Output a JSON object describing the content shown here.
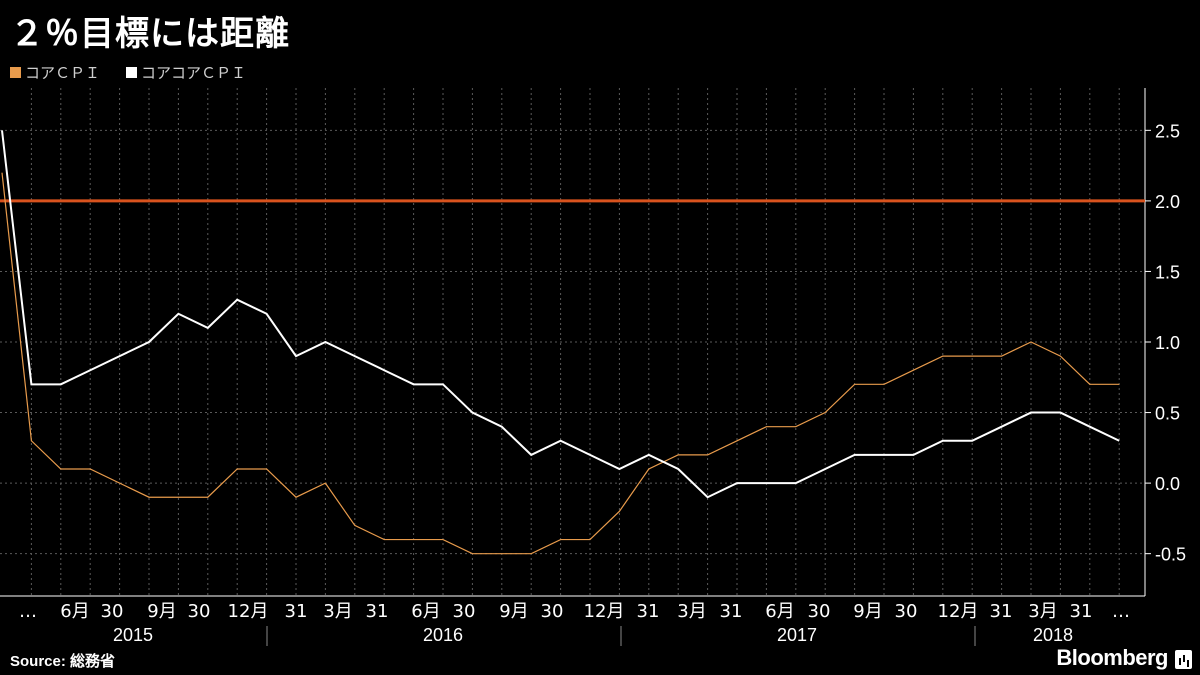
{
  "title": "２％目標には距離",
  "source": "Source: 総務省",
  "brand": "Bloomberg",
  "colors": {
    "background": "#000000",
    "core_cpi": "#e89b4c",
    "core_core_cpi": "#ffffff",
    "target_line": "#d9531e",
    "grid": "#5a5a5a",
    "axis_text": "#ffffff"
  },
  "chart_data": {
    "type": "line",
    "title": "２％目標には距離",
    "ylim": [
      -0.8,
      2.8
    ],
    "yticks": [
      -0.5,
      0.0,
      0.5,
      1.0,
      1.5,
      2.0,
      2.5
    ],
    "ytick_labels": [
      "-0.5",
      "0.0",
      "0.5",
      "1.0",
      "1.5",
      "2.0",
      "2.5"
    ],
    "y_axis_side": "right",
    "grid": true,
    "legend_position": "top-left",
    "x": [
      "2015-03",
      "2015-04",
      "2015-05",
      "2015-06",
      "2015-07",
      "2015-08",
      "2015-09",
      "2015-10",
      "2015-11",
      "2015-12",
      "2016-01",
      "2016-02",
      "2016-03",
      "2016-04",
      "2016-05",
      "2016-06",
      "2016-07",
      "2016-08",
      "2016-09",
      "2016-10",
      "2016-11",
      "2016-12",
      "2017-01",
      "2017-02",
      "2017-03",
      "2017-04",
      "2017-05",
      "2017-06",
      "2017-07",
      "2017-08",
      "2017-09",
      "2017-10",
      "2017-11",
      "2017-12",
      "2018-01",
      "2018-02",
      "2018-03",
      "2018-04",
      "2018-05"
    ],
    "xtick_labels": [
      "…",
      "6月",
      "30",
      "9月",
      "30",
      "12月",
      "31",
      "3月",
      "31",
      "6月",
      "30",
      "9月",
      "30",
      "12月",
      "31",
      "3月",
      "31",
      "6月",
      "30",
      "9月",
      "30",
      "12月",
      "31",
      "3月",
      "31",
      "…"
    ],
    "year_labels": [
      "2015",
      "2016",
      "2017",
      "2018"
    ],
    "reference_line": {
      "y": 2.0,
      "label": ""
    },
    "series": [
      {
        "name": "コアＣＰＩ",
        "values": [
          2.2,
          0.3,
          0.1,
          0.1,
          0.0,
          -0.1,
          -0.1,
          -0.1,
          0.1,
          0.1,
          -0.1,
          0.0,
          -0.3,
          -0.4,
          -0.4,
          -0.4,
          -0.5,
          -0.5,
          -0.5,
          -0.4,
          -0.4,
          -0.2,
          0.1,
          0.2,
          0.2,
          0.3,
          0.4,
          0.4,
          0.5,
          0.7,
          0.7,
          0.8,
          0.9,
          0.9,
          0.9,
          1.0,
          0.9,
          0.7,
          0.7
        ]
      },
      {
        "name": "コアコアＣＰＩ",
        "values": [
          2.5,
          0.7,
          0.7,
          0.8,
          0.9,
          1.0,
          1.2,
          1.1,
          1.3,
          1.2,
          0.9,
          1.0,
          0.9,
          0.8,
          0.7,
          0.7,
          0.5,
          0.4,
          0.2,
          0.3,
          0.2,
          0.1,
          0.2,
          0.1,
          -0.1,
          0.0,
          0.0,
          0.0,
          0.1,
          0.2,
          0.2,
          0.2,
          0.3,
          0.3,
          0.4,
          0.5,
          0.5,
          0.4,
          0.3
        ]
      }
    ]
  }
}
